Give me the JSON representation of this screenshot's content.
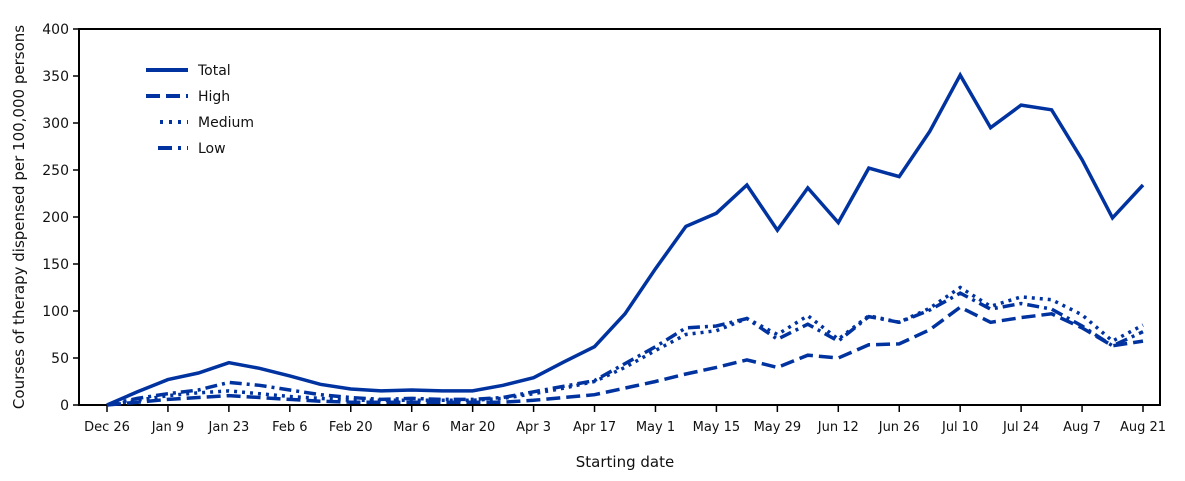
{
  "chart_data": {
    "type": "line",
    "title": "",
    "xlabel": "Starting date",
    "ylabel": "Courses of therapy dispensed per 100,000 persons",
    "ylim": [
      0,
      400
    ],
    "yticks": [
      0,
      50,
      100,
      150,
      200,
      250,
      300,
      350,
      400
    ],
    "xtick_labels": [
      "Dec 26",
      "Jan 9",
      "Jan 23",
      "Feb 6",
      "Feb 20",
      "Mar 6",
      "Mar 20",
      "Apr 3",
      "Apr 17",
      "May 1",
      "May 15",
      "May 29",
      "Jun 12",
      "Jun 26",
      "Jul 10",
      "Jul 24",
      "Aug 7",
      "Aug 21"
    ],
    "grid": false,
    "legend_position": "upper-left",
    "color": "#0033a0",
    "x": [
      "Dec 26",
      "Jan 2",
      "Jan 9",
      "Jan 16",
      "Jan 23",
      "Jan 30",
      "Feb 6",
      "Feb 13",
      "Feb 20",
      "Feb 27",
      "Mar 6",
      "Mar 13",
      "Mar 20",
      "Mar 27",
      "Apr 3",
      "Apr 10",
      "Apr 17",
      "Apr 24",
      "May 1",
      "May 8",
      "May 15",
      "May 22",
      "May 29",
      "Jun 5",
      "Jun 12",
      "Jun 19",
      "Jun 26",
      "Jul 3",
      "Jul 10",
      "Jul 17",
      "Jul 24",
      "Jul 31",
      "Aug 7",
      "Aug 14",
      "Aug 21"
    ],
    "series": [
      {
        "name": "Total",
        "dash": "solid",
        "values": [
          0,
          14,
          27,
          34,
          45,
          39,
          31,
          22,
          17,
          15,
          16,
          15,
          15,
          21,
          29,
          46,
          62,
          97,
          145,
          190,
          204,
          234,
          186,
          231,
          194,
          252,
          243,
          291,
          351,
          295,
          319,
          314,
          261,
          199,
          234
        ]
      },
      {
        "name": "High",
        "dash": "dashed",
        "values": [
          0,
          3,
          6,
          8,
          10,
          8,
          6,
          4,
          3,
          3,
          3,
          3,
          3,
          3,
          5,
          8,
          11,
          18,
          25,
          33,
          40,
          48,
          40,
          53,
          50,
          64,
          65,
          80,
          104,
          88,
          93,
          97,
          82,
          63,
          68
        ]
      },
      {
        "name": "Medium",
        "dash": "dotted",
        "values": [
          0,
          5,
          10,
          13,
          15,
          12,
          9,
          7,
          5,
          5,
          5,
          5,
          5,
          7,
          12,
          18,
          25,
          40,
          58,
          75,
          79,
          92,
          75,
          95,
          70,
          95,
          88,
          103,
          125,
          105,
          115,
          112,
          96,
          68,
          85
        ]
      },
      {
        "name": "Low",
        "dash": "dash-dot",
        "values": [
          0,
          7,
          12,
          16,
          24,
          21,
          16,
          11,
          8,
          6,
          7,
          6,
          6,
          8,
          14,
          20,
          26,
          44,
          62,
          82,
          84,
          92,
          70,
          86,
          68,
          94,
          88,
          101,
          119,
          102,
          108,
          102,
          84,
          63,
          78
        ]
      }
    ]
  },
  "legend": {
    "items": [
      {
        "label": "Total"
      },
      {
        "label": "High"
      },
      {
        "label": "Medium"
      },
      {
        "label": "Low"
      }
    ]
  }
}
